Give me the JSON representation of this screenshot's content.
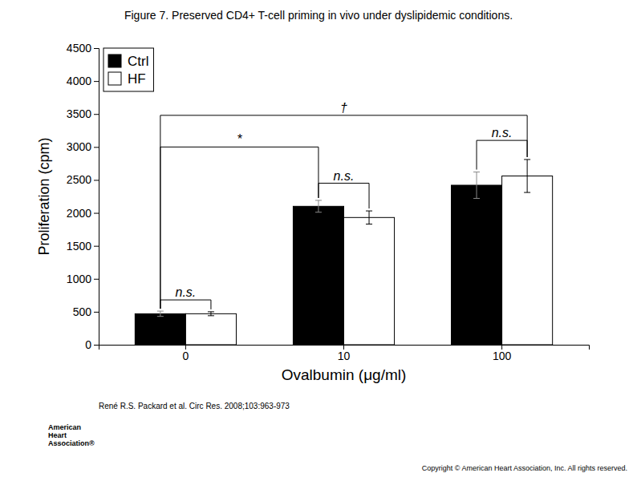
{
  "chart_data": {
    "type": "bar",
    "title": "Figure 7. Preserved CD4+ T-cell priming in vivo under dyslipidemic conditions.",
    "xlabel": "Ovalbumin (μg/ml)",
    "ylabel": "Proliferation (cpm)",
    "categories": [
      "0",
      "10",
      "100"
    ],
    "series": [
      {
        "name": "Ctrl",
        "color": "#000000",
        "values": [
          470,
          2100,
          2420
        ],
        "errors": [
          40,
          90,
          200
        ]
      },
      {
        "name": "HF",
        "color": "#ffffff",
        "values": [
          470,
          1930,
          2560
        ],
        "errors": [
          30,
          100,
          250
        ]
      }
    ],
    "ylim": [
      0,
      4500
    ],
    "yticks": [
      0,
      500,
      1000,
      1500,
      2000,
      2500,
      3000,
      3500,
      4000,
      4500
    ],
    "grid": false,
    "legend": "upper left",
    "annotations": [
      {
        "text": "n.s.",
        "from": {
          "category": "0",
          "series": "Ctrl"
        },
        "to": {
          "category": "0",
          "series": "HF"
        },
        "y": 680
      },
      {
        "text": "n.s.",
        "from": {
          "category": "10",
          "series": "Ctrl"
        },
        "to": {
          "category": "10",
          "series": "HF"
        },
        "y": 2450
      },
      {
        "text": "n.s.",
        "from": {
          "category": "100",
          "series": "Ctrl"
        },
        "to": {
          "category": "100",
          "series": "HF"
        },
        "y": 3100
      },
      {
        "text": "*",
        "from": {
          "category": "0",
          "series": "Ctrl"
        },
        "to": {
          "category": "10",
          "series": "Ctrl"
        },
        "y": 3000
      },
      {
        "text": "†",
        "from": {
          "category": "0",
          "series": "Ctrl"
        },
        "to": {
          "category": "100",
          "series": "HF"
        },
        "y": 3480
      }
    ],
    "footnote": "René R.S. Packard et al. Circ Res. 2008;103:963-973",
    "copyright": "Copyright © American Heart Association, Inc.  All rights reserved.",
    "logo": [
      "American",
      "Heart",
      "Association®"
    ]
  }
}
